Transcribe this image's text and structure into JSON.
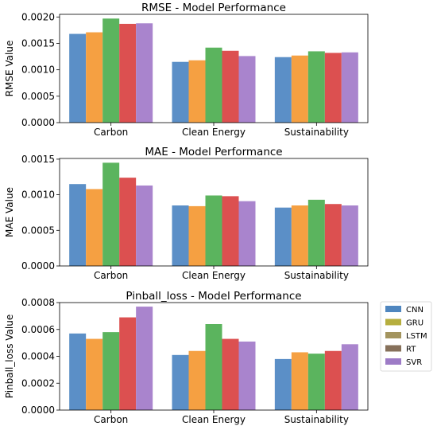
{
  "chart_data": [
    {
      "type": "bar",
      "title": "RMSE - Model Performance",
      "xlabel": "",
      "ylabel": "RMSE Value",
      "ylim": [
        0,
        0.00205
      ],
      "yticks": [
        "0.0000",
        "0.0005",
        "0.0010",
        "0.0015",
        "0.0020"
      ],
      "ytick_values": [
        0,
        0.0005,
        0.001,
        0.0015,
        0.002
      ],
      "categories": [
        "Carbon",
        "Clean Energy",
        "Sustainability"
      ],
      "series": [
        {
          "values": [
            0.00168,
            0.00115,
            0.00124
          ]
        },
        {
          "values": [
            0.00171,
            0.00118,
            0.00127
          ]
        },
        {
          "values": [
            0.00197,
            0.00142,
            0.00135
          ]
        },
        {
          "values": [
            0.00187,
            0.00136,
            0.00132
          ]
        },
        {
          "values": [
            0.00188,
            0.00126,
            0.00133
          ]
        }
      ]
    },
    {
      "type": "bar",
      "title": "MAE - Model Performance",
      "xlabel": "",
      "ylabel": "MAE Value",
      "ylim": [
        0,
        0.00151
      ],
      "yticks": [
        "0.0000",
        "0.0005",
        "0.0010",
        "0.0015"
      ],
      "ytick_values": [
        0,
        0.0005,
        0.001,
        0.0015
      ],
      "categories": [
        "Carbon",
        "Clean Energy",
        "Sustainability"
      ],
      "series": [
        {
          "values": [
            0.00115,
            0.00085,
            0.00082
          ]
        },
        {
          "values": [
            0.00108,
            0.00084,
            0.00085
          ]
        },
        {
          "values": [
            0.00145,
            0.00099,
            0.00093
          ]
        },
        {
          "values": [
            0.00124,
            0.00098,
            0.00087
          ]
        },
        {
          "values": [
            0.00113,
            0.00091,
            0.00085
          ]
        }
      ]
    },
    {
      "type": "bar",
      "title": "Pinball_loss - Model Performance",
      "xlabel": "",
      "ylabel": "Pinball_loss Value",
      "ylim": [
        0,
        0.0008
      ],
      "yticks": [
        "0.0000",
        "0.0002",
        "0.0004",
        "0.0006",
        "0.0008"
      ],
      "ytick_values": [
        0,
        0.0002,
        0.0004,
        0.0006,
        0.0008
      ],
      "categories": [
        "Carbon",
        "Clean Energy",
        "Sustainability"
      ],
      "series": [
        {
          "values": [
            0.00057,
            0.00041,
            0.00038
          ]
        },
        {
          "values": [
            0.00053,
            0.00044,
            0.00043
          ]
        },
        {
          "values": [
            0.00058,
            0.00064,
            0.00042
          ]
        },
        {
          "values": [
            0.00069,
            0.00053,
            0.00044
          ]
        },
        {
          "values": [
            0.00077,
            0.00051,
            0.00049
          ]
        }
      ]
    }
  ],
  "bar_colors": [
    "#5b8fc7",
    "#f5a042",
    "#5bb45e",
    "#dc5050",
    "#a984cd"
  ],
  "legend": {
    "placement": "right",
    "entries": [
      {
        "label": "CNN",
        "color": "#4f86bf"
      },
      {
        "label": "GRU",
        "color": "#b6ae3e"
      },
      {
        "label": "LSTM",
        "color": "#a3945e"
      },
      {
        "label": "RT",
        "color": "#86705a"
      },
      {
        "label": "SVR",
        "color": "#9d7bc6"
      }
    ]
  }
}
